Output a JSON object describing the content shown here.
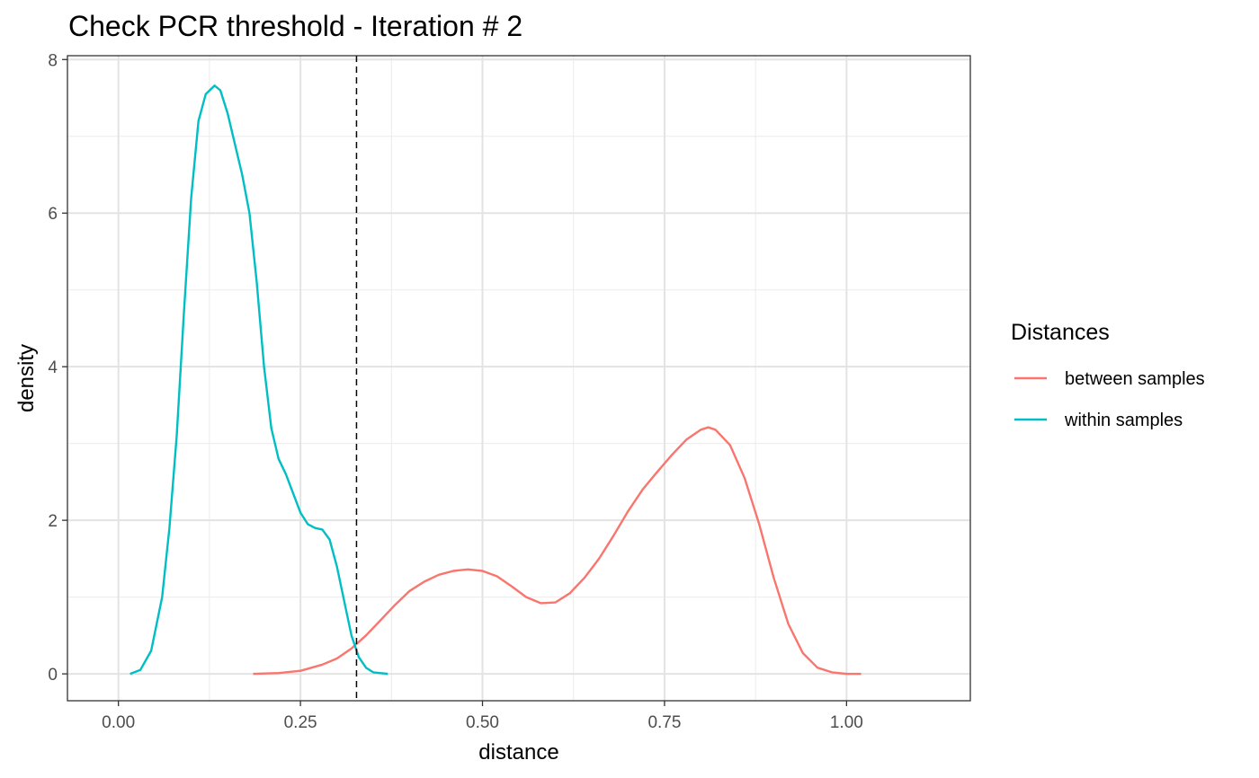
{
  "chart_data": {
    "type": "line",
    "title": "Check PCR threshold - Iteration # 2",
    "xlabel": "distance",
    "ylabel": "density",
    "xlim": [
      -0.07,
      1.17
    ],
    "ylim": [
      -0.35,
      8.05
    ],
    "x_ticks": [
      0,
      0.25,
      0.5,
      0.75,
      1
    ],
    "x_tick_labels": [
      "0.00",
      "0.25",
      "0.50",
      "0.75",
      "1.00"
    ],
    "y_ticks": [
      0,
      2,
      4,
      6,
      8
    ],
    "y_tick_labels": [
      "0",
      "2",
      "4",
      "6",
      "8"
    ],
    "x_minor_ticks": [
      0.125,
      0.375,
      0.625,
      0.875
    ],
    "y_minor_ticks": [
      1,
      3,
      5,
      7
    ],
    "grid": true,
    "threshold_line": {
      "x": 0.327,
      "style": "dashed",
      "color": "#000000"
    },
    "legend": {
      "title": "Distances",
      "position": "right",
      "entries": [
        "between samples",
        "within samples"
      ]
    },
    "series": [
      {
        "name": "between samples",
        "color": "#F8766D",
        "x": [
          0.185,
          0.22,
          0.25,
          0.28,
          0.3,
          0.32,
          0.34,
          0.36,
          0.38,
          0.4,
          0.42,
          0.44,
          0.46,
          0.48,
          0.5,
          0.52,
          0.54,
          0.56,
          0.58,
          0.6,
          0.62,
          0.64,
          0.66,
          0.68,
          0.7,
          0.72,
          0.74,
          0.76,
          0.78,
          0.8,
          0.81,
          0.82,
          0.84,
          0.86,
          0.88,
          0.9,
          0.92,
          0.94,
          0.96,
          0.98,
          1.0,
          1.02
        ],
        "y": [
          0.0,
          0.01,
          0.04,
          0.12,
          0.2,
          0.33,
          0.5,
          0.7,
          0.9,
          1.08,
          1.2,
          1.29,
          1.34,
          1.36,
          1.34,
          1.27,
          1.14,
          1.0,
          0.92,
          0.93,
          1.05,
          1.25,
          1.5,
          1.8,
          2.12,
          2.4,
          2.63,
          2.85,
          3.05,
          3.18,
          3.21,
          3.18,
          2.98,
          2.55,
          1.95,
          1.25,
          0.65,
          0.27,
          0.08,
          0.02,
          0.0,
          0.0
        ]
      },
      {
        "name": "within samples",
        "color": "#00BFC4",
        "x": [
          0.016,
          0.03,
          0.045,
          0.06,
          0.07,
          0.08,
          0.09,
          0.1,
          0.11,
          0.12,
          0.132,
          0.14,
          0.15,
          0.16,
          0.17,
          0.18,
          0.19,
          0.2,
          0.21,
          0.22,
          0.23,
          0.24,
          0.25,
          0.26,
          0.27,
          0.28,
          0.29,
          0.3,
          0.31,
          0.32,
          0.33,
          0.34,
          0.35,
          0.37
        ],
        "y": [
          0.0,
          0.05,
          0.3,
          1.0,
          1.9,
          3.1,
          4.7,
          6.2,
          7.2,
          7.55,
          7.66,
          7.6,
          7.3,
          6.9,
          6.5,
          6.0,
          5.1,
          4.0,
          3.2,
          2.8,
          2.6,
          2.35,
          2.1,
          1.95,
          1.9,
          1.88,
          1.75,
          1.4,
          0.95,
          0.5,
          0.22,
          0.08,
          0.02,
          0.0
        ]
      }
    ]
  }
}
